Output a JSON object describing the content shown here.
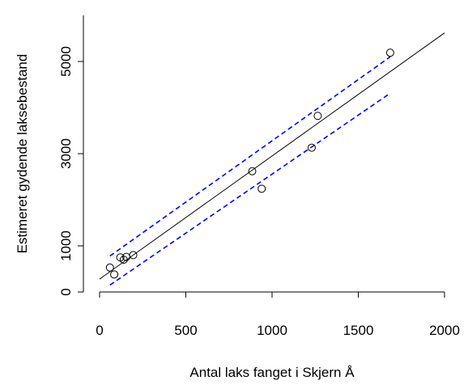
{
  "chart_data": {
    "type": "scatter",
    "xlabel": "Antal laks fanget i Skjern Å",
    "ylabel": "Estimeret gydende laksebestand",
    "xlim": [
      0,
      2000
    ],
    "ylim": [
      0,
      6000
    ],
    "xticks": [
      0,
      500,
      1000,
      1500,
      2000
    ],
    "yticks": [
      0,
      1000,
      3000,
      5000
    ],
    "grid": false,
    "points": [
      {
        "x": 60,
        "y": 530
      },
      {
        "x": 85,
        "y": 380
      },
      {
        "x": 120,
        "y": 750
      },
      {
        "x": 140,
        "y": 700
      },
      {
        "x": 155,
        "y": 760
      },
      {
        "x": 195,
        "y": 800
      },
      {
        "x": 885,
        "y": 2620
      },
      {
        "x": 940,
        "y": 2240
      },
      {
        "x": 1230,
        "y": 3130
      },
      {
        "x": 1265,
        "y": 3820
      },
      {
        "x": 1685,
        "y": 5190
      }
    ],
    "fit_line": {
      "x": [
        0,
        2000
      ],
      "y": [
        280,
        5620
      ],
      "color": "#000000"
    },
    "confidence_upper": {
      "x": [
        60,
        1685
      ],
      "y": [
        780,
        5100
      ],
      "color": "#0000ff"
    },
    "confidence_lower": {
      "x": [
        60,
        1685
      ],
      "y": [
        150,
        4310
      ],
      "color": "#0000ff"
    }
  }
}
